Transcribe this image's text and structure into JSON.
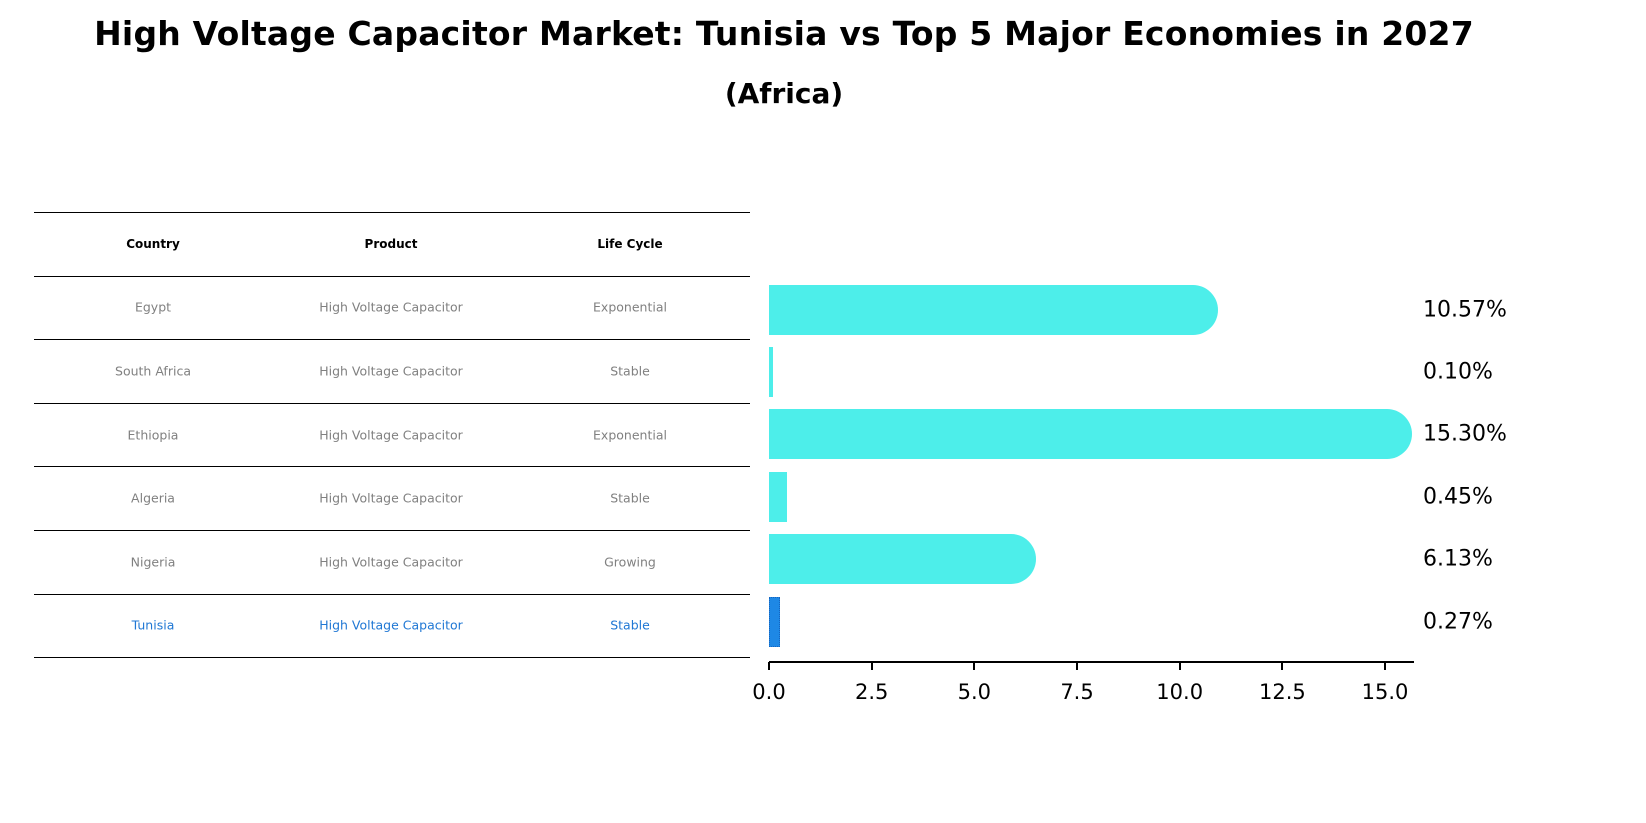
{
  "title": "High Voltage Capacitor Market: Tunisia vs Top 5 Major Economies in 2027",
  "subtitle": "(Africa)",
  "table": {
    "headers": [
      "Country",
      "Product",
      "Life Cycle"
    ],
    "rows": [
      {
        "country": "Egypt",
        "product": "High Voltage Capacitor",
        "life_cycle": "Exponential",
        "highlight": false
      },
      {
        "country": "South Africa",
        "product": "High Voltage Capacitor",
        "life_cycle": "Stable",
        "highlight": false
      },
      {
        "country": "Ethiopia",
        "product": "High Voltage Capacitor",
        "life_cycle": "Exponential",
        "highlight": false
      },
      {
        "country": "Algeria",
        "product": "High Voltage Capacitor",
        "life_cycle": "Stable",
        "highlight": false
      },
      {
        "country": "Nigeria",
        "product": "High Voltage Capacitor",
        "life_cycle": "Growing",
        "highlight": false
      },
      {
        "country": "Tunisia",
        "product": "High Voltage Capacitor",
        "life_cycle": "Stable",
        "highlight": true
      }
    ]
  },
  "colors": {
    "bar": "#4deeea",
    "highlight_bar": "#1e88e5",
    "highlight_text": "#1f77d4",
    "row_text": "#808080"
  },
  "chart_data": {
    "type": "bar",
    "orientation": "horizontal",
    "title": "High Voltage Capacitor Market: Tunisia vs Top 5 Major Economies in 2027",
    "subtitle": "(Africa)",
    "categories": [
      "Egypt",
      "South Africa",
      "Ethiopia",
      "Algeria",
      "Nigeria",
      "Tunisia"
    ],
    "values": [
      10.57,
      0.1,
      15.3,
      0.45,
      6.13,
      0.27
    ],
    "value_labels": [
      "10.57%",
      "0.10%",
      "15.30%",
      "0.45%",
      "6.13%",
      "0.27%"
    ],
    "xlabel": "",
    "ylabel": "",
    "xlim": [
      0,
      16.2
    ],
    "xticks": [
      0.0,
      2.5,
      5.0,
      7.5,
      10.0,
      12.5,
      15.0
    ],
    "xtick_labels": [
      "0.0",
      "2.5",
      "5.0",
      "7.5",
      "10.0",
      "12.5",
      "15.0"
    ],
    "highlight": "Tunisia",
    "grid": false,
    "legend": null
  }
}
